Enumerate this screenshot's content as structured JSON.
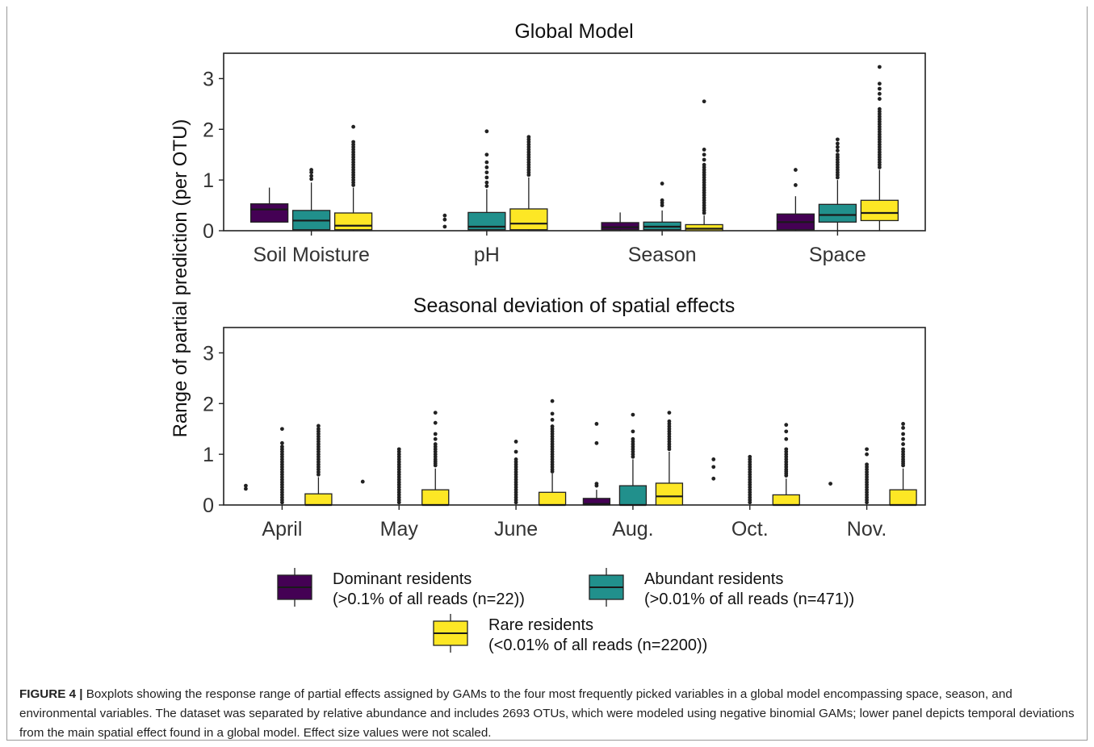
{
  "colors": {
    "dominant": "#440154",
    "abundant": "#21908c",
    "rare": "#fde725",
    "median": "#1a1a1a",
    "outlier": "#222222"
  },
  "ylabel": "Range of partial prediction (per OTU)",
  "chart_data": [
    {
      "type": "box",
      "title": "Global Model",
      "ylim": [
        0,
        3.5
      ],
      "yticks": [
        0,
        1,
        2,
        3
      ],
      "categories": [
        "Soil Moisture",
        "pH",
        "Season",
        "Space"
      ],
      "series": [
        {
          "name": "Dominant residents",
          "boxes": [
            {
              "whisker_low": 0.17,
              "q1": 0.17,
              "median": 0.42,
              "q3": 0.53,
              "whisker_high": 0.85,
              "outliers": []
            },
            {
              "whisker_low": 0.25,
              "q1": 0.25,
              "median": 0.25,
              "q3": 0.25,
              "whisker_high": 0.25,
              "outliers": [
                0.08,
                0.22,
                0.3
              ],
              "hidden": true
            },
            {
              "whisker_low": 0.0,
              "q1": 0.02,
              "median": 0.07,
              "q3": 0.16,
              "whisker_high": 0.36,
              "outliers": []
            },
            {
              "whisker_low": 0.0,
              "q1": 0.02,
              "median": 0.17,
              "q3": 0.33,
              "whisker_high": 0.68,
              "outliers": [
                0.9,
                1.2
              ]
            }
          ]
        },
        {
          "name": "Abundant residents",
          "boxes": [
            {
              "whisker_low": 0.0,
              "q1": 0.02,
              "median": 0.2,
              "q3": 0.4,
              "whisker_high": 0.95,
              "outliers": [
                1.02,
                1.08,
                1.15,
                1.2
              ]
            },
            {
              "whisker_low": 0.0,
              "q1": 0.02,
              "median": 0.08,
              "q3": 0.36,
              "whisker_high": 0.82,
              "outliers": [
                0.88,
                0.95,
                1.05,
                1.15,
                1.25,
                1.35,
                1.5,
                1.96
              ]
            },
            {
              "whisker_low": 0.0,
              "q1": 0.02,
              "median": 0.08,
              "q3": 0.17,
              "whisker_high": 0.4,
              "outliers": [
                0.5,
                0.55,
                0.6,
                0.93
              ]
            },
            {
              "whisker_low": 0.0,
              "q1": 0.17,
              "median": 0.31,
              "q3": 0.52,
              "whisker_high": 1.0,
              "outliers": [
                1.05,
                1.1,
                1.15,
                1.2,
                1.25,
                1.3,
                1.35,
                1.4,
                1.45,
                1.5,
                1.58,
                1.65,
                1.72,
                1.8
              ]
            }
          ]
        },
        {
          "name": "Rare residents",
          "boxes": [
            {
              "whisker_low": 0.0,
              "q1": 0.02,
              "median": 0.1,
              "q3": 0.35,
              "whisker_high": 0.85,
              "outliers": [
                0.9,
                0.95,
                1.0,
                1.05,
                1.1,
                1.15,
                1.2,
                1.25,
                1.3,
                1.35,
                1.4,
                1.45,
                1.5,
                1.55,
                1.6,
                1.65,
                1.7,
                1.75,
                2.05
              ]
            },
            {
              "whisker_low": 0.0,
              "q1": 0.02,
              "median": 0.14,
              "q3": 0.43,
              "whisker_high": 1.05,
              "outliers": [
                1.1,
                1.15,
                1.2,
                1.25,
                1.3,
                1.35,
                1.4,
                1.45,
                1.5,
                1.55,
                1.6,
                1.65,
                1.7,
                1.75,
                1.8,
                1.85
              ]
            },
            {
              "whisker_low": 0.0,
              "q1": 0.0,
              "median": 0.04,
              "q3": 0.12,
              "whisker_high": 0.3,
              "outliers": [
                0.35,
                0.4,
                0.45,
                0.5,
                0.55,
                0.6,
                0.65,
                0.7,
                0.75,
                0.8,
                0.85,
                0.9,
                0.95,
                1.0,
                1.05,
                1.1,
                1.15,
                1.2,
                1.25,
                1.3,
                1.4,
                1.5,
                1.6,
                2.55
              ]
            },
            {
              "whisker_low": 0.0,
              "q1": 0.2,
              "median": 0.35,
              "q3": 0.6,
              "whisker_high": 1.2,
              "outliers": [
                1.25,
                1.3,
                1.35,
                1.4,
                1.45,
                1.5,
                1.55,
                1.6,
                1.65,
                1.7,
                1.75,
                1.8,
                1.85,
                1.9,
                1.95,
                2.0,
                2.05,
                2.1,
                2.15,
                2.2,
                2.25,
                2.3,
                2.35,
                2.4,
                2.6,
                2.7,
                2.8,
                2.9,
                3.23
              ]
            }
          ]
        }
      ]
    },
    {
      "type": "box",
      "title": "Seasonal deviation of spatial effects",
      "ylim": [
        0,
        3.5
      ],
      "yticks": [
        0,
        1,
        2,
        3
      ],
      "categories": [
        "April",
        "May",
        "June",
        "Aug.",
        "Oct.",
        "Nov."
      ],
      "series": [
        {
          "name": "Dominant residents",
          "boxes": [
            {
              "whisker_low": 0,
              "q1": 0,
              "median": 0,
              "q3": 0,
              "whisker_high": 0,
              "outliers": [
                0.32,
                0.38
              ],
              "hidden": true
            },
            {
              "whisker_low": 0,
              "q1": 0,
              "median": 0,
              "q3": 0,
              "whisker_high": 0,
              "outliers": [
                0.46
              ],
              "hidden": true
            },
            {
              "whisker_low": 0,
              "q1": 0,
              "median": 0,
              "q3": 0,
              "whisker_high": 0,
              "outliers": [],
              "hidden": true
            },
            {
              "whisker_low": 0.0,
              "q1": 0.0,
              "median": 0.02,
              "q3": 0.13,
              "whisker_high": 0.3,
              "outliers": [
                0.38,
                0.42,
                1.22,
                1.6
              ]
            },
            {
              "whisker_low": 0,
              "q1": 0,
              "median": 0,
              "q3": 0,
              "whisker_high": 0,
              "outliers": [
                0.52,
                0.75,
                0.9
              ],
              "hidden": true
            },
            {
              "whisker_low": 0,
              "q1": 0,
              "median": 0,
              "q3": 0,
              "whisker_high": 0,
              "outliers": [
                0.42
              ],
              "hidden": true
            }
          ]
        },
        {
          "name": "Abundant residents",
          "boxes": [
            {
              "whisker_low": 0,
              "q1": 0,
              "median": 0,
              "q3": 0,
              "whisker_high": 0,
              "outliers": [
                0.05,
                0.1,
                0.15,
                0.2,
                0.25,
                0.3,
                0.35,
                0.4,
                0.45,
                0.5,
                0.55,
                0.6,
                0.65,
                0.7,
                0.75,
                0.8,
                0.85,
                0.9,
                0.95,
                1.0,
                1.05,
                1.1,
                1.15,
                1.22,
                1.5
              ],
              "hidden": true
            },
            {
              "whisker_low": 0,
              "q1": 0,
              "median": 0,
              "q3": 0,
              "whisker_high": 0,
              "outliers": [
                0.05,
                0.1,
                0.15,
                0.2,
                0.25,
                0.3,
                0.35,
                0.4,
                0.45,
                0.5,
                0.55,
                0.6,
                0.65,
                0.7,
                0.75,
                0.8,
                0.85,
                0.9,
                0.95,
                1.0,
                1.05,
                1.1
              ],
              "hidden": true
            },
            {
              "whisker_low": 0,
              "q1": 0,
              "median": 0,
              "q3": 0,
              "whisker_high": 0,
              "outliers": [
                0.05,
                0.1,
                0.15,
                0.2,
                0.25,
                0.3,
                0.35,
                0.4,
                0.45,
                0.5,
                0.55,
                0.6,
                0.65,
                0.7,
                0.75,
                0.8,
                0.85,
                0.9,
                1.05,
                1.25
              ],
              "hidden": true
            },
            {
              "whisker_low": 0.0,
              "q1": 0.0,
              "median": 0.0,
              "q3": 0.38,
              "whisker_high": 0.9,
              "outliers": [
                0.95,
                1.0,
                1.05,
                1.1,
                1.15,
                1.2,
                1.25,
                1.3,
                1.45,
                1.78
              ]
            },
            {
              "whisker_low": 0,
              "q1": 0,
              "median": 0,
              "q3": 0,
              "whisker_high": 0,
              "outliers": [
                0.05,
                0.1,
                0.15,
                0.2,
                0.25,
                0.3,
                0.35,
                0.4,
                0.45,
                0.5,
                0.55,
                0.6,
                0.65,
                0.7,
                0.75,
                0.8,
                0.85,
                0.9,
                0.95
              ],
              "hidden": true
            },
            {
              "whisker_low": 0,
              "q1": 0,
              "median": 0,
              "q3": 0,
              "whisker_high": 0,
              "outliers": [
                0.05,
                0.1,
                0.15,
                0.2,
                0.25,
                0.3,
                0.35,
                0.4,
                0.45,
                0.5,
                0.55,
                0.6,
                0.65,
                0.7,
                0.75,
                0.8,
                1.0,
                1.1
              ],
              "hidden": true
            }
          ]
        },
        {
          "name": "Rare residents",
          "boxes": [
            {
              "whisker_low": 0.0,
              "q1": 0.0,
              "median": 0.0,
              "q3": 0.22,
              "whisker_high": 0.55,
              "outliers": [
                0.6,
                0.65,
                0.7,
                0.75,
                0.8,
                0.85,
                0.9,
                0.95,
                1.0,
                1.05,
                1.1,
                1.15,
                1.2,
                1.25,
                1.3,
                1.35,
                1.4,
                1.45,
                1.5,
                1.56
              ]
            },
            {
              "whisker_low": 0.0,
              "q1": 0.0,
              "median": 0.0,
              "q3": 0.3,
              "whisker_high": 0.72,
              "outliers": [
                0.78,
                0.82,
                0.86,
                0.9,
                0.95,
                1.0,
                1.05,
                1.1,
                1.15,
                1.2,
                1.3,
                1.4,
                1.62,
                1.82
              ]
            },
            {
              "whisker_low": 0.0,
              "q1": 0.0,
              "median": 0.0,
              "q3": 0.25,
              "whisker_high": 0.62,
              "outliers": [
                0.66,
                0.7,
                0.75,
                0.8,
                0.85,
                0.9,
                0.95,
                1.0,
                1.05,
                1.1,
                1.15,
                1.2,
                1.25,
                1.3,
                1.35,
                1.4,
                1.45,
                1.5,
                1.55,
                1.68,
                1.8,
                2.05
              ]
            },
            {
              "whisker_low": 0.0,
              "q1": 0.0,
              "median": 0.17,
              "q3": 0.43,
              "whisker_high": 1.05,
              "outliers": [
                1.1,
                1.15,
                1.2,
                1.25,
                1.3,
                1.35,
                1.4,
                1.45,
                1.5,
                1.55,
                1.6,
                1.65,
                1.82
              ]
            },
            {
              "whisker_low": 0.0,
              "q1": 0.0,
              "median": 0.0,
              "q3": 0.2,
              "whisker_high": 0.52,
              "outliers": [
                0.58,
                0.62,
                0.66,
                0.7,
                0.75,
                0.8,
                0.85,
                0.9,
                0.95,
                1.0,
                1.05,
                1.1,
                1.3,
                1.45,
                1.58
              ]
            },
            {
              "whisker_low": 0.0,
              "q1": 0.0,
              "median": 0.0,
              "q3": 0.3,
              "whisker_high": 0.72,
              "outliers": [
                0.78,
                0.82,
                0.86,
                0.9,
                0.95,
                1.0,
                1.05,
                1.1,
                1.2,
                1.3,
                1.4,
                1.52,
                1.6
              ]
            }
          ]
        }
      ]
    }
  ],
  "legend": [
    {
      "key": "dominant",
      "line1": "Dominant residents",
      "line2": "(>0.1% of all reads (n=22))"
    },
    {
      "key": "abundant",
      "line1": "Abundant residents",
      "line2": "(>0.01% of all reads (n=471))"
    },
    {
      "key": "rare",
      "line1": "Rare residents",
      "line2": "(<0.01% of all reads (n=2200))"
    }
  ],
  "caption": {
    "label": "FIGURE 4 |",
    "text": " Boxplots showing the response range of partial effects assigned by GAMs to the four most frequently picked variables in a global model encompassing space, season, and environmental variables. The dataset was separated by relative abundance and includes 2693 OTUs, which were modeled using negative binomial GAMs; lower panel depicts temporal deviations from the main spatial effect found in a global model. Effect size values were not scaled."
  }
}
